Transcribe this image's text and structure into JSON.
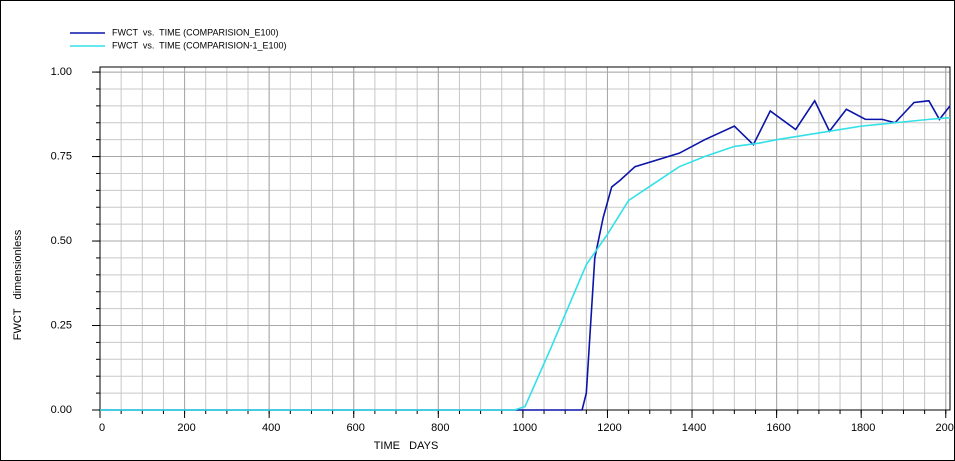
{
  "chart_data": {
    "type": "line",
    "x_label": "TIME   DAYS",
    "y_label": "FWCT   dimensionless",
    "series": [
      {
        "name": "FWCT  vs.  TIME (COMPARISION_E100)",
        "color": "#0a14a8",
        "x": [
          0,
          1000,
          1130,
          1140,
          1150,
          1170,
          1190,
          1210,
          1230,
          1265,
          1370,
          1430,
          1500,
          1545,
          1585,
          1645,
          1690,
          1725,
          1765,
          1810,
          1850,
          1880,
          1925,
          1960,
          1985,
          2010
        ],
        "values": [
          0,
          0,
          0,
          0,
          0.05,
          0.45,
          0.57,
          0.66,
          0.68,
          0.72,
          0.76,
          0.8,
          0.84,
          0.785,
          0.885,
          0.83,
          0.915,
          0.825,
          0.89,
          0.86,
          0.86,
          0.85,
          0.91,
          0.915,
          0.86,
          0.9
        ]
      },
      {
        "name": "FWCT  vs.  TIME (COMPARISION-1_E100)",
        "color": "#33e0e8",
        "x": [
          0,
          980,
          1005,
          1065,
          1150,
          1200,
          1250,
          1310,
          1370,
          1430,
          1500,
          1560,
          1600,
          1700,
          1800,
          1880,
          1960,
          2010
        ],
        "values": [
          0,
          0,
          0.01,
          0.18,
          0.43,
          0.52,
          0.62,
          0.67,
          0.72,
          0.75,
          0.78,
          0.79,
          0.8,
          0.82,
          0.84,
          0.85,
          0.86,
          0.865
        ]
      }
    ],
    "xlim": [
      0,
      2010
    ],
    "ylim": [
      0,
      1.015
    ],
    "xticks": [
      0,
      200,
      400,
      600,
      800,
      1000,
      1200,
      1400,
      1600,
      1800,
      2000
    ],
    "yticks": [
      {
        "value": 0,
        "label": "0.00"
      },
      {
        "value": 0.25,
        "label": "0.25"
      },
      {
        "value": 0.5,
        "label": "0.50"
      },
      {
        "value": 0.75,
        "label": "0.75"
      },
      {
        "value": 1,
        "label": "1.00"
      }
    ],
    "x_minor_step": 50,
    "y_minor_step": 0.05,
    "grid": true,
    "legend": "top-left"
  }
}
